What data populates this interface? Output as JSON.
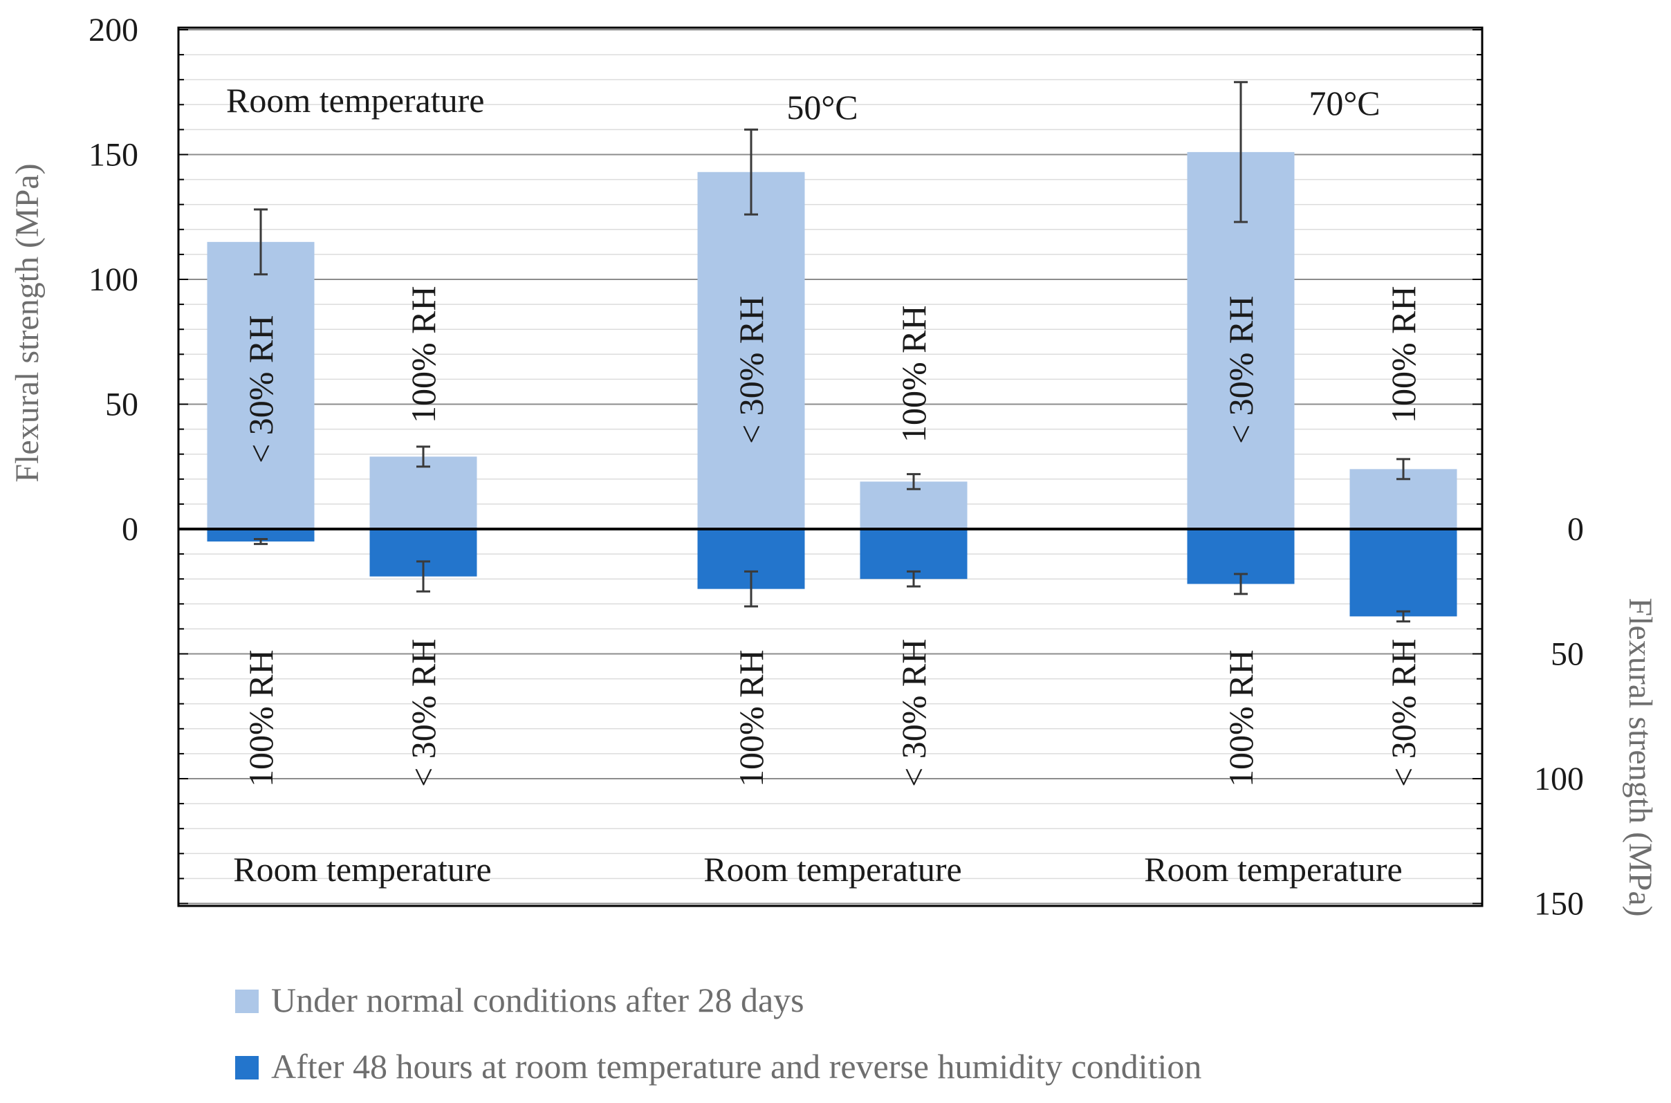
{
  "chart_data": {
    "type": "bar",
    "left_axis": {
      "title": "Flexural strength (MPa)",
      "ylim": [
        -150,
        200
      ],
      "ticks": [
        0,
        50,
        100,
        150,
        200
      ]
    },
    "right_axis": {
      "title": "Flexural strength (MPa)",
      "ticks": [
        0,
        50,
        100,
        150
      ]
    },
    "grid": true,
    "series": [
      {
        "name": "Under normal conditions after 28 days",
        "color": "#adc7e8",
        "values": [
          115,
          29,
          143,
          19,
          151,
          24
        ],
        "errors": [
          13,
          4,
          17,
          3,
          28,
          4
        ],
        "labels": [
          "< 30% RH",
          "100% RH",
          "< 30% RH",
          "100% RH",
          "< 30% RH",
          "100% RH"
        ]
      },
      {
        "name": "After 48 hours at room temperature and reverse humidity condition",
        "color": "#2375cc",
        "values": [
          5,
          19,
          24,
          20,
          22,
          35
        ],
        "errors": [
          1,
          6,
          7,
          3,
          4,
          2
        ],
        "labels": [
          "100% RH",
          "< 30% RH",
          "100% RH",
          "< 30% RH",
          "100% RH",
          "< 30% RH"
        ]
      }
    ],
    "group_top_labels": [
      "Room temperature",
      "50°C",
      "70°C"
    ],
    "group_bottom_labels": [
      "Room temperature",
      "Room temperature",
      "Room temperature"
    ],
    "legend_position": "bottom-left"
  }
}
